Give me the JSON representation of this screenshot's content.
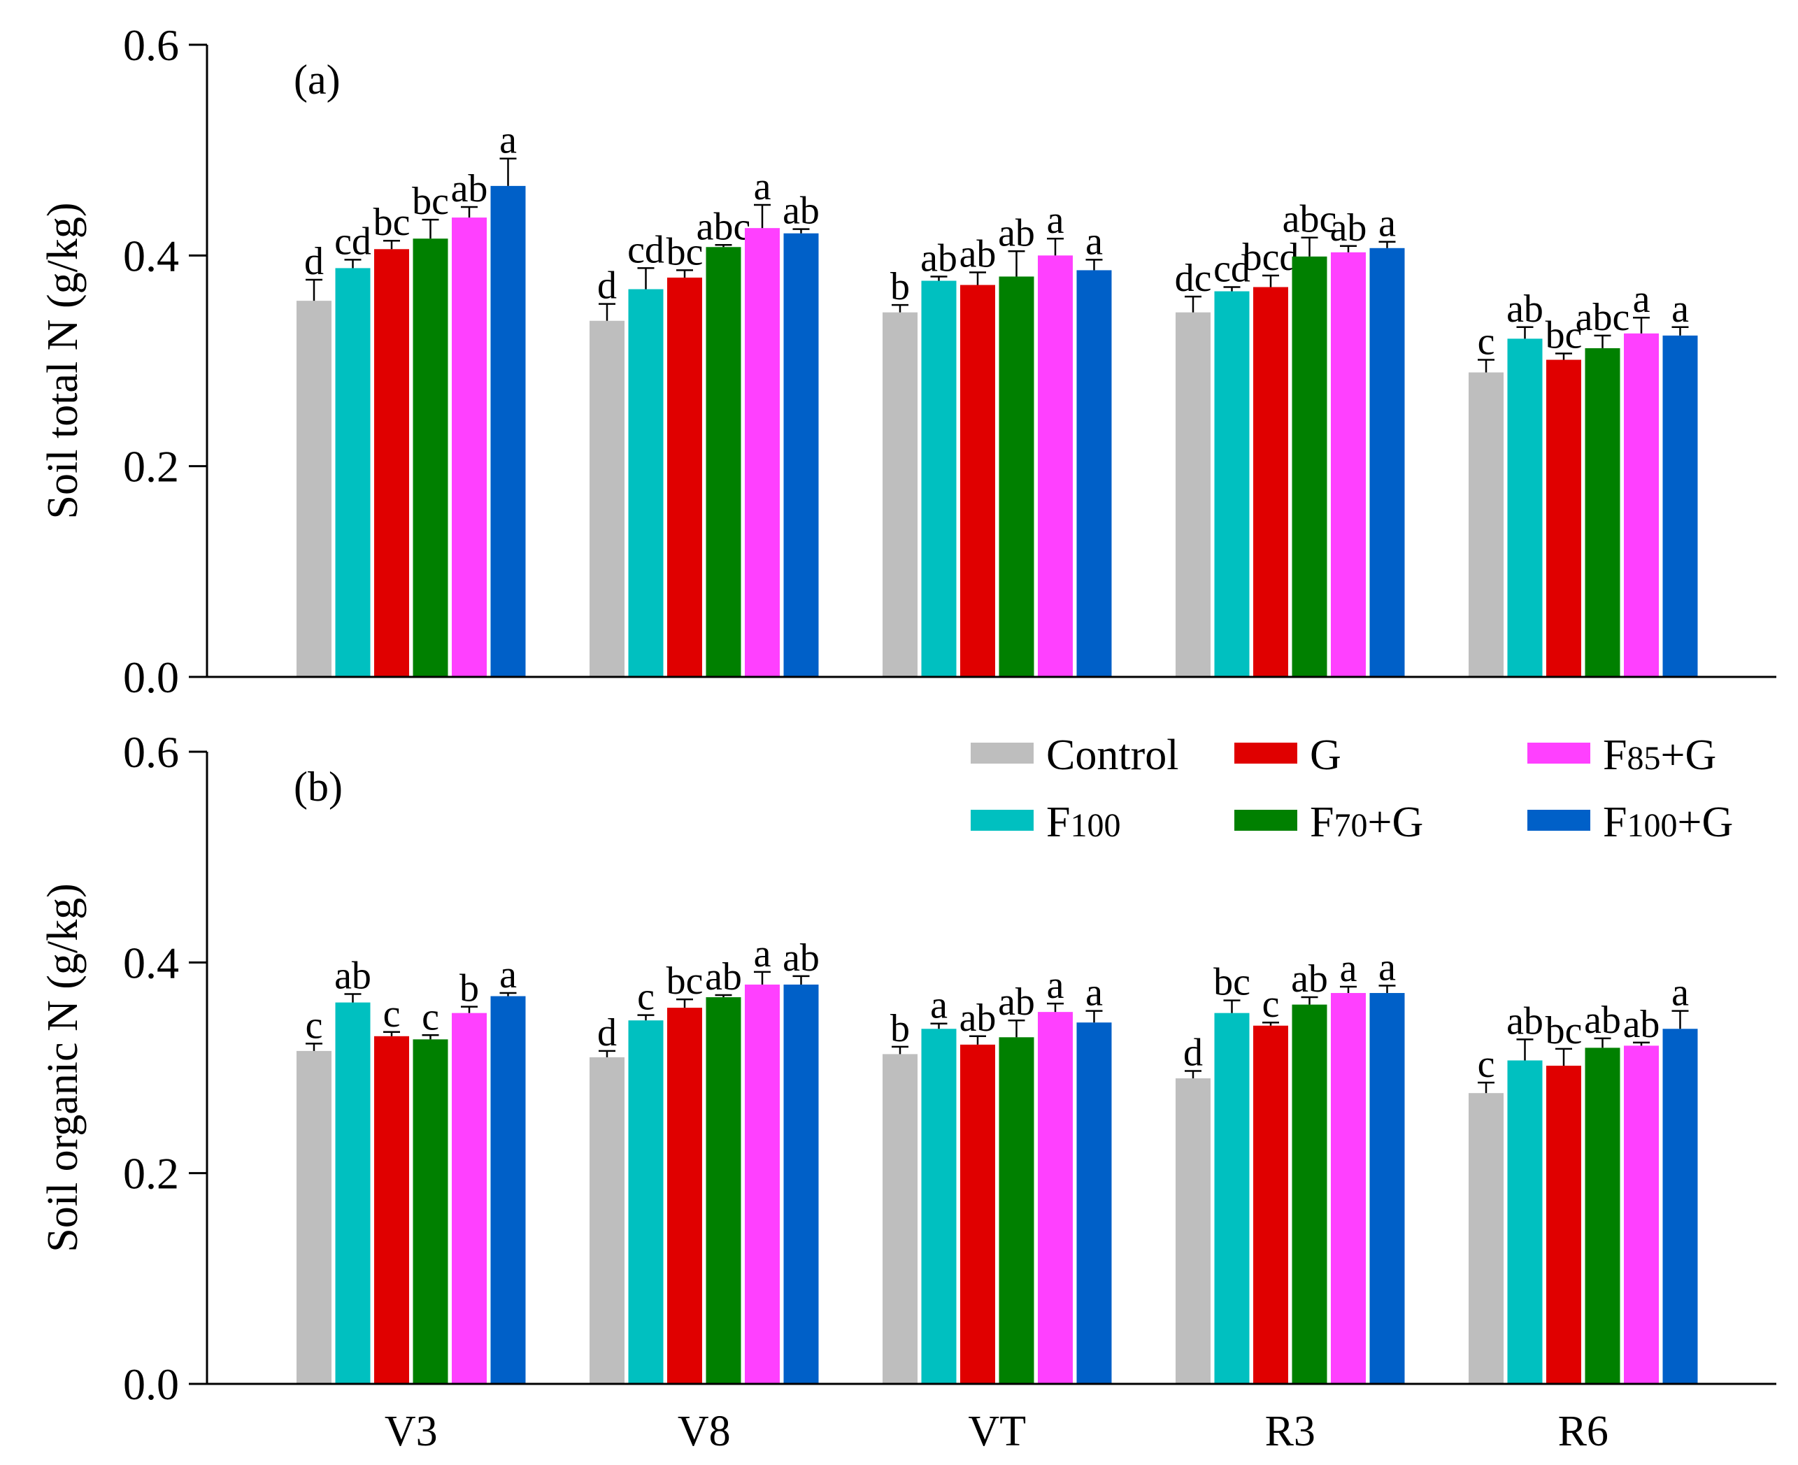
{
  "chart_data": [
    {
      "type": "bar",
      "panel_label": "(a)",
      "ylabel": "Soil total N (g/kg)",
      "xlabel": "",
      "ylim": [
        0,
        0.6
      ],
      "yticks": [
        "0.0",
        "0.2",
        "0.4",
        "0.6"
      ],
      "ytick_values": [
        0,
        0.2,
        0.4,
        0.6
      ],
      "categories": [
        "V3",
        "V8",
        "VT",
        "R3",
        "R6"
      ],
      "series": [
        {
          "name": "Control",
          "values": [
            0.357,
            0.338,
            0.346,
            0.346,
            0.289
          ],
          "errors": [
            0.02,
            0.016,
            0.007,
            0.015,
            0.012
          ],
          "letters": [
            "d",
            "d",
            "b",
            "dc",
            "c"
          ]
        },
        {
          "name": "F100",
          "values": [
            0.388,
            0.368,
            0.376,
            0.366,
            0.321
          ],
          "errors": [
            0.008,
            0.02,
            0.004,
            0.004,
            0.011
          ],
          "letters": [
            "cd",
            "cd",
            "ab",
            "cd",
            "ab"
          ]
        },
        {
          "name": "G",
          "values": [
            0.406,
            0.379,
            0.372,
            0.37,
            0.301
          ],
          "errors": [
            0.008,
            0.007,
            0.012,
            0.011,
            0.006
          ],
          "letters": [
            "bc",
            "bc",
            "ab",
            "bcd",
            "bc"
          ]
        },
        {
          "name": "F70+G",
          "values": [
            0.416,
            0.408,
            0.38,
            0.399,
            0.312
          ],
          "errors": [
            0.018,
            0.002,
            0.024,
            0.018,
            0.012
          ],
          "letters": [
            "bc",
            "abc",
            "ab",
            "abc",
            "abc"
          ]
        },
        {
          "name": "F85+G",
          "values": [
            0.436,
            0.426,
            0.4,
            0.403,
            0.326
          ],
          "errors": [
            0.01,
            0.022,
            0.016,
            0.006,
            0.015
          ],
          "letters": [
            "ab",
            "a",
            "a",
            "ab",
            "a"
          ]
        },
        {
          "name": "F100+G",
          "values": [
            0.466,
            0.421,
            0.386,
            0.407,
            0.324
          ],
          "errors": [
            0.026,
            0.004,
            0.01,
            0.006,
            0.008
          ],
          "letters": [
            "a",
            "ab",
            "a",
            "a",
            "a"
          ]
        }
      ]
    },
    {
      "type": "bar",
      "panel_label": "(b)",
      "ylabel": "Soil organic N (g/kg)",
      "xlabel": "",
      "ylim": [
        0,
        0.6
      ],
      "yticks": [
        "0.0",
        "0.2",
        "0.4",
        "0.6"
      ],
      "ytick_values": [
        0,
        0.2,
        0.4,
        0.6
      ],
      "categories": [
        "V3",
        "V8",
        "VT",
        "R3",
        "R6"
      ],
      "legend_position": "top-right",
      "series": [
        {
          "name": "Control",
          "values": [
            0.316,
            0.31,
            0.313,
            0.29,
            0.276
          ],
          "errors": [
            0.007,
            0.006,
            0.007,
            0.007,
            0.01
          ],
          "letters": [
            "c",
            "d",
            "b",
            "d",
            "c"
          ]
        },
        {
          "name": "F100",
          "values": [
            0.362,
            0.345,
            0.337,
            0.352,
            0.307
          ],
          "errors": [
            0.008,
            0.005,
            0.005,
            0.012,
            0.02
          ],
          "letters": [
            "ab",
            "c",
            "a",
            "bc",
            "ab"
          ]
        },
        {
          "name": "G",
          "values": [
            0.33,
            0.357,
            0.322,
            0.34,
            0.302
          ],
          "errors": [
            0.004,
            0.008,
            0.008,
            0.003,
            0.016
          ],
          "letters": [
            "c",
            "bc",
            "ab",
            "c",
            "bc"
          ]
        },
        {
          "name": "F70+G",
          "values": [
            0.327,
            0.367,
            0.329,
            0.36,
            0.319
          ],
          "errors": [
            0.004,
            0.002,
            0.016,
            0.007,
            0.009
          ],
          "letters": [
            "c",
            "ab",
            "ab",
            "ab",
            "ab"
          ]
        },
        {
          "name": "F85+G",
          "values": [
            0.352,
            0.379,
            0.353,
            0.371,
            0.321
          ],
          "errors": [
            0.006,
            0.012,
            0.008,
            0.006,
            0.003
          ],
          "letters": [
            "b",
            "a",
            "a",
            "a",
            "ab"
          ]
        },
        {
          "name": "F100+G",
          "values": [
            0.368,
            0.379,
            0.343,
            0.371,
            0.337
          ],
          "errors": [
            0.003,
            0.008,
            0.011,
            0.007,
            0.017
          ],
          "letters": [
            "a",
            "ab",
            "a",
            "a",
            "a"
          ]
        }
      ]
    }
  ],
  "legend": {
    "entries": [
      {
        "name": "Control",
        "main": "Control",
        "sub": "",
        "suffix": ""
      },
      {
        "name": "F100",
        "main": "F",
        "sub": "100",
        "suffix": ""
      },
      {
        "name": "G",
        "main": "G",
        "sub": "",
        "suffix": ""
      },
      {
        "name": "F70+G",
        "main": "F",
        "sub": "70",
        "suffix": "+G"
      },
      {
        "name": "F85+G",
        "main": "F",
        "sub": "85",
        "suffix": "+G"
      },
      {
        "name": "F100+G",
        "main": "F",
        "sub": "100",
        "suffix": "+G"
      }
    ]
  },
  "colors": {
    "Control": "#bebebe",
    "F100": "#00c0c0",
    "G": "#e00000",
    "F70+G": "#008000",
    "F85+G": "#ff40ff",
    "F100+G": "#0060c8"
  }
}
